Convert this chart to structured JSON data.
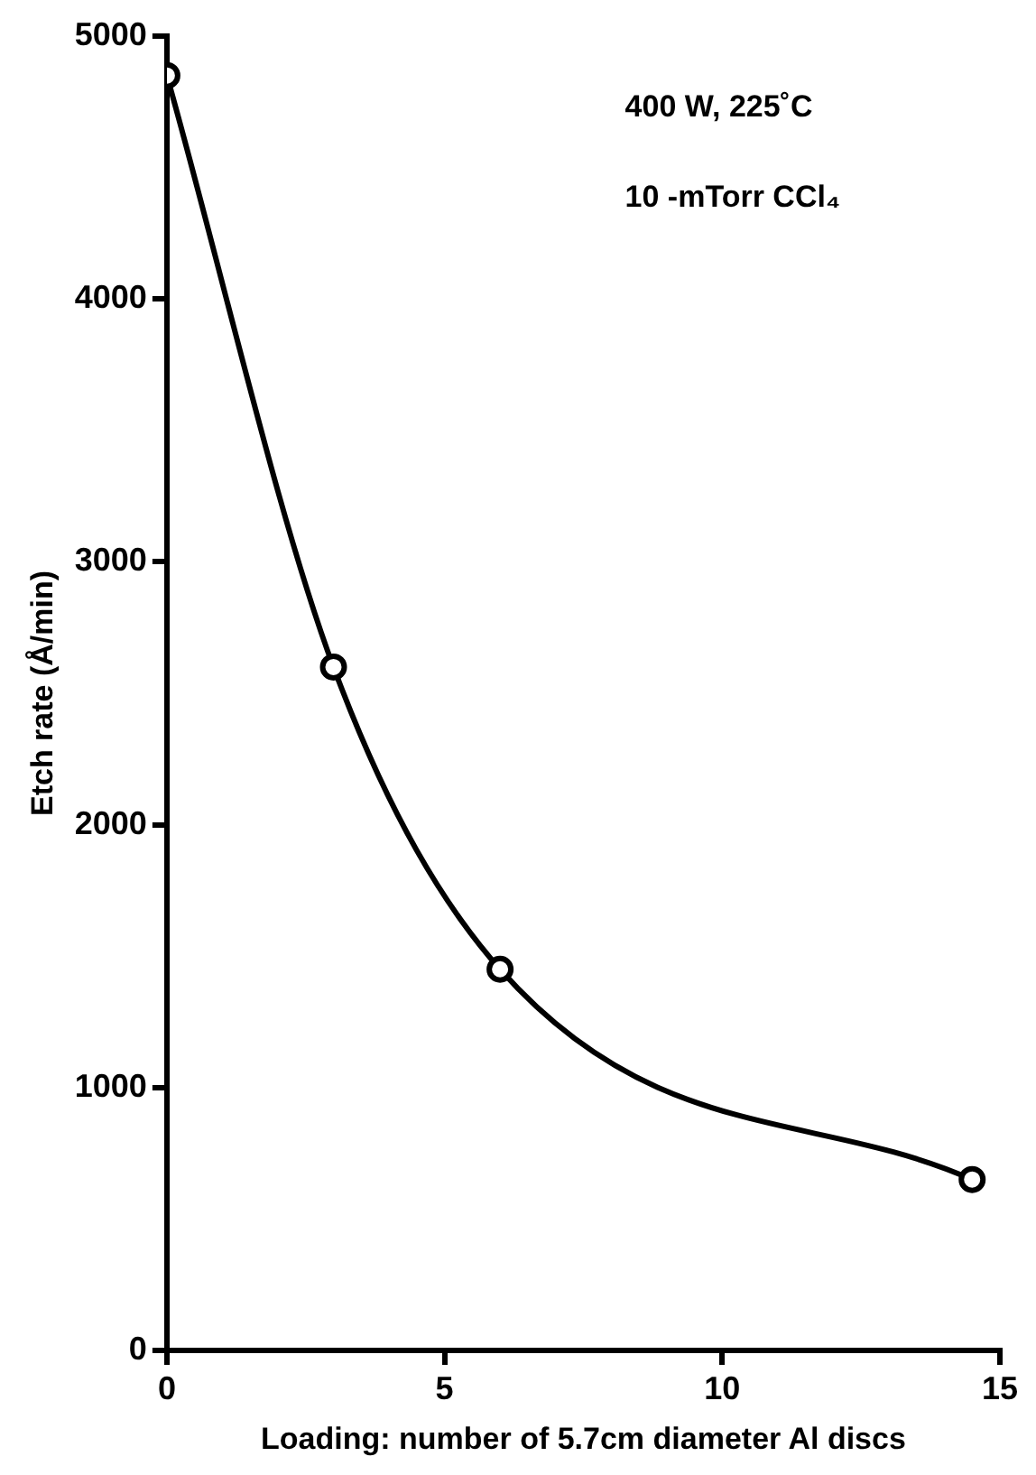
{
  "chart_data": {
    "type": "line",
    "xlabel": "Loading: number of 5.7cm diameter Al discs",
    "ylabel": "Etch rate (Å/min)",
    "x": [
      0,
      3,
      6,
      14.5
    ],
    "series": [
      {
        "color": "#000000",
        "values": [
          4850,
          2600,
          1450,
          650
        ]
      }
    ],
    "xlim": [
      0,
      15
    ],
    "xticks": [
      0,
      5,
      10,
      15
    ],
    "ylim": [
      0,
      5000
    ],
    "yticks": [
      0,
      1000,
      2000,
      3000,
      4000,
      5000
    ],
    "grid": false,
    "legend": false,
    "marker": "circle",
    "line_style": "solid",
    "annotations": [
      "400 W, 225˚C",
      "10 -mTorr CCl₄"
    ]
  }
}
